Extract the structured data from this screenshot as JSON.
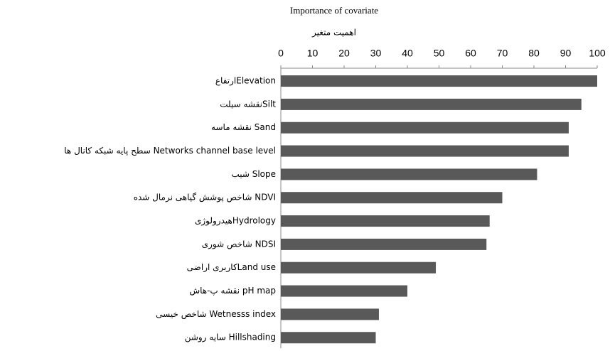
{
  "chart_data": {
    "type": "barh",
    "title": "Importance of covariate",
    "subtitle": "اهمیت متغیر",
    "categories": [
      "ارتفاعElevation",
      "نقشه سیلتSilt",
      "نقشه ماسه Sand",
      "سطح پایه شبکه کانال ها Networks channel base level",
      "شیب Slope",
      "شاخص پوشش گیاهی نرمال شده NDVI",
      "هیدرولوژیHydrology",
      "شاخص شوری NDSI",
      "کاربری اراضیLand use",
      "نقشه پ-هاش pH map",
      "شاخص خیسی Wetnesss index",
      "سایه روشن Hillshading"
    ],
    "values": [
      100,
      95,
      91,
      91,
      81,
      70,
      66,
      65,
      49,
      40,
      31,
      30
    ],
    "color": "#595959",
    "xlim": [
      0,
      100
    ],
    "xticks": [
      0,
      10,
      20,
      30,
      40,
      50,
      60,
      70,
      80,
      90,
      100
    ]
  }
}
